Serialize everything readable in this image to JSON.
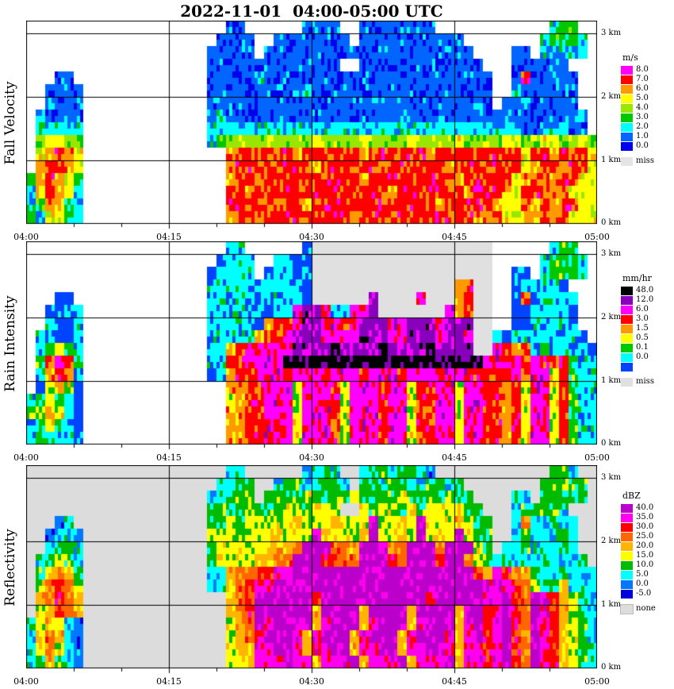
{
  "chart_data": {
    "type": "heatmap",
    "title": "2022-11-01  04:00-05:00 UTC",
    "x_ticks": [
      "04:00",
      "04:15",
      "04:30",
      "04:45",
      "05:00"
    ],
    "x_minutes": 60,
    "y_tick_labels": [
      "3 km",
      "2 km",
      "1 km",
      "0 km"
    ],
    "y_ticks_km": [
      3,
      2,
      1,
      0
    ],
    "y_range_km": [
      0,
      3.2
    ],
    "grid_on": true,
    "grid_encoding": "rows top-to-bottom 3.2km to 0km (0.2km per row), 60 columns = minutes 04:00 to 05:00; '.'=no echo background, 'm'=missing, digit=index into levels[] ascending",
    "panels": [
      {
        "id": "fall-velocity",
        "name": "Fall Velocity",
        "unit": "m/s",
        "background": "#FFFFFF",
        "levels": [
          {
            "label": "0.0",
            "color": "#0000EE"
          },
          {
            "label": "1.0",
            "color": "#0066FF"
          },
          {
            "label": "2.0",
            "color": "#00FFFF"
          },
          {
            "label": "3.0",
            "color": "#00C800"
          },
          {
            "label": "4.0",
            "color": "#99E600"
          },
          {
            "label": "5.0",
            "color": "#FFFF00"
          },
          {
            "label": "6.0",
            "color": "#FF9900"
          },
          {
            "label": "7.0",
            "color": "#FF0000"
          },
          {
            "label": "8.0",
            "color": "#FF00FF"
          }
        ],
        "missing": {
          "label": "miss",
          "color": "#E4E4E4"
        },
        "grid": [
          ".....................11......1111..11111111............233..",
          "....................1111..11111111.11111111111........23332.",
          "...................11111.1111111111111111111111....11.22222.",
          "...................11111111111111..1111111111111...111111...",
          "...11..............111112111111111111111111111111..1711111..",
          "..1111.............111111111121111111111111111111..2111111..",
          "..2111.............111111111111111111111111111111.11211111..",
          ".21111.............1211111111111111111111111111111211111112.",
          ".32222.............2222222222222222222222222222222221122211.",
          ".45544.............23444454444544445444454444544445544554454",
          ".56765...............6777777677777767777776777777777577677755",
          ".67765...............6777777776777777677777767777777567767755",
          "367653...............6776777777777767777777776777775677677555",
          "257652...............7767777777777777767777777677765777675555",
          "236632...............7777777767777777777777677777655767677555",
          "325532...............6776777777777677777777777767755667675555"
        ]
      },
      {
        "id": "rain-intensity",
        "name": "Rain Intensity",
        "unit": "mm/hr",
        "background": "#FFFFFF",
        "levels": [
          {
            "label": "",
            "color": "#0044FF"
          },
          {
            "label": "0.0",
            "color": "#00FFFF"
          },
          {
            "label": "0.1",
            "color": "#00C800"
          },
          {
            "label": "0.5",
            "color": "#FFFF00"
          },
          {
            "label": "1.5",
            "color": "#FF9900"
          },
          {
            "label": "3.0",
            "color": "#FF0000"
          },
          {
            "label": "6.0",
            "color": "#FF00FF"
          },
          {
            "label": "12.0",
            "color": "#8800BB"
          },
          {
            "label": "48.0",
            "color": "#000000"
          }
        ],
        "missing": {
          "label": "miss",
          "color": "#E0E0E0"
        },
        "grid": [
          ".....................11......0mmmmmmmmmmmmmmmmmmm......122..",
          "....................0111..1100mmmmmmmmmmmmmmmmmmm.....12221.",
          "...................01111.01101mmmmmmmmmmmmmmmmmmm..00.12221.",
          "...................11111111110mmmmmmmmmmmmmmm45mm..011110...",
          "...00..............11011111110mmmmmm7mmmm6mmm45mm..0501111..",
          "..0011.............111111011677611667mmmmmmm645mm..0011110..",
          "..1001.............1111104556776656777667776777mm..0011110..",
          ".11001.............1111145567776666777667776776mm1011111110.",
          ".12321.............1145666667777877778777787777mm65451211110",
          ".25652.............11556666888888888888888888888666656545211",
          ".14541.............014556665666566656665666566655556466352111",
          ".03430...............4455666366653666566355663665545366352111",
          "123210...............3455666366653666566355663665545366352111",
          "234310...............4455666366653666566355663665545366352111",
          "123210...............4455666366653666566355663665545366352111",
          "122110...............4455666366653666566355663665545366352111"
        ]
      },
      {
        "id": "reflectivity",
        "name": "Reflectivity",
        "unit": "dBZ",
        "background": "#DCDCDC",
        "levels": [
          {
            "label": "-5.0",
            "color": "#0000DD"
          },
          {
            "label": "0.0",
            "color": "#0077FF"
          },
          {
            "label": "5.0",
            "color": "#00FFFF"
          },
          {
            "label": "10.0",
            "color": "#00BB00"
          },
          {
            "label": "15.0",
            "color": "#FFFF00"
          },
          {
            "label": "20.0",
            "color": "#FFB400"
          },
          {
            "label": "25.0",
            "color": "#FF6600"
          },
          {
            "label": "30.0",
            "color": "#FF0000"
          },
          {
            "label": "35.0",
            "color": "#FF00EE"
          },
          {
            "label": "40.0",
            "color": "#BB00CC"
          }
        ],
        "missing": {
          "label": "none",
          "color": "#DCDCDC"
        },
        "grid": [
          ".....................22......1232..23323321............332..",
          "....................2233..23322332.33233223323........33433.",
          "...................22333.3333433334333343333433....22.33333.",
          "...................33334333443444..4344353444533...233332...",
          "...12..............334344444544454449445494445433..2622322..",
          "..1221.............444344454449544459445494549433..2322232..",
          "..2332.............344444555699966599966999699943.22322232..",
          ".23432.............3444455669997766999769997996432322232223.",
          ".35653.............22566778899999999999999999997587653223222",
          ".46764.............22567889999999999999999999999898764335222",
          ".56765...............567999999799999999999799999889769875432",
          ".45765...............567999999599995999959999599789769875432",
          "345421...............456989999589995899958999589789769875432",
          "256521...............456899985899958999589998589789769875432",
          "246421...............455889985889958899588998588789769875432",
          "235321...............455888988588895888958889588789769875432"
        ]
      }
    ]
  }
}
